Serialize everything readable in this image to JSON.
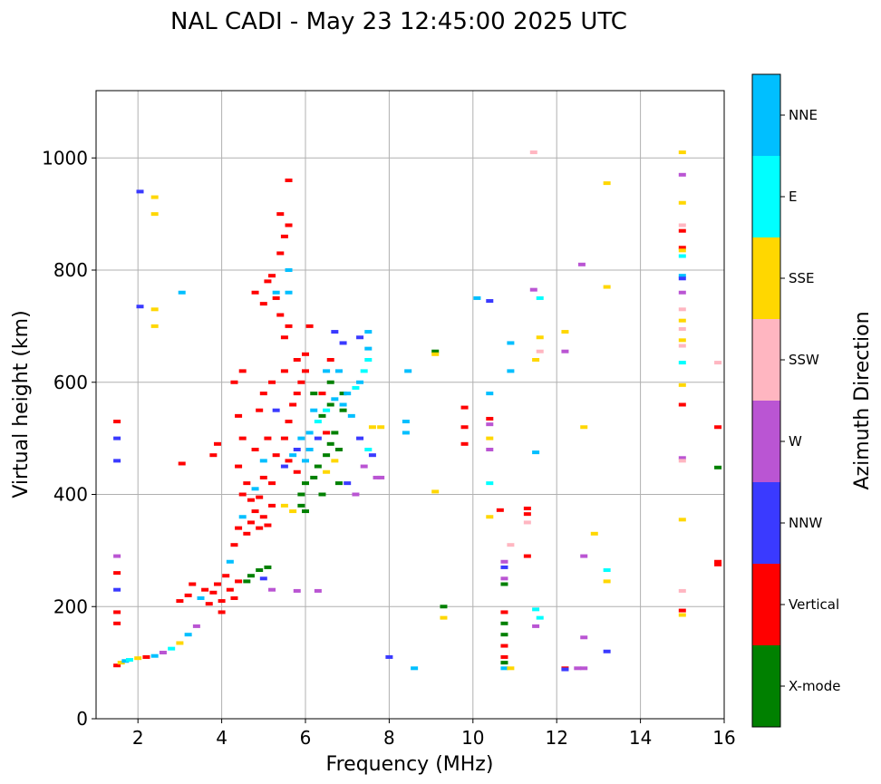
{
  "chart_data": {
    "type": "scatter",
    "title": "NAL CADI - May 23 12:45:00 2025 UTC",
    "xlabel": "Frequency (MHz)",
    "ylabel": "Virtual height (km)",
    "xlim": [
      1,
      16
    ],
    "ylim": [
      0,
      1120
    ],
    "xticks": [
      2,
      4,
      6,
      8,
      10,
      12,
      14,
      16
    ],
    "xtick_labels": [
      "2",
      "4",
      "6",
      "8",
      "10",
      "12",
      "14",
      "16"
    ],
    "yticks": [
      0,
      200,
      400,
      600,
      800,
      1000
    ],
    "ytick_labels": [
      "0",
      "200",
      "400",
      "600",
      "800",
      "1000"
    ],
    "grid": true,
    "colorbar": {
      "label": "Azimuth Direction",
      "categories": [
        {
          "name": "X-mode",
          "color": "#008000"
        },
        {
          "name": "Vertical",
          "color": "#ff0000"
        },
        {
          "name": "NNW",
          "color": "#3a3aff"
        },
        {
          "name": "W",
          "color": "#ba55d3"
        },
        {
          "name": "SSW",
          "color": "#ffb6c1"
        },
        {
          "name": "SSE",
          "color": "#ffd700"
        },
        {
          "name": "E",
          "color": "#00ffff"
        },
        {
          "name": "NNE",
          "color": "#00bfff"
        }
      ]
    },
    "points": [
      [
        1.5,
        95,
        "Vertical"
      ],
      [
        1.6,
        100,
        "SSE"
      ],
      [
        1.7,
        103,
        "NNE"
      ],
      [
        1.8,
        105,
        "E"
      ],
      [
        2.0,
        108,
        "SSE"
      ],
      [
        2.2,
        110,
        "Vertical"
      ],
      [
        2.4,
        112,
        "NNE"
      ],
      [
        2.6,
        118,
        "W"
      ],
      [
        2.8,
        125,
        "E"
      ],
      [
        3.0,
        135,
        "SSE"
      ],
      [
        3.2,
        150,
        "NNE"
      ],
      [
        3.4,
        165,
        "W"
      ],
      [
        1.5,
        170,
        "Vertical"
      ],
      [
        1.5,
        190,
        "Vertical"
      ],
      [
        1.5,
        230,
        "NNW"
      ],
      [
        1.5,
        260,
        "Vertical"
      ],
      [
        1.5,
        290,
        "W"
      ],
      [
        1.5,
        460,
        "NNW"
      ],
      [
        1.5,
        500,
        "NNW"
      ],
      [
        1.5,
        530,
        "Vertical"
      ],
      [
        2.05,
        940,
        "NNW"
      ],
      [
        2.05,
        735,
        "NNW"
      ],
      [
        2.4,
        900,
        "SSE"
      ],
      [
        2.4,
        930,
        "SSE"
      ],
      [
        2.4,
        700,
        "SSE"
      ],
      [
        2.4,
        730,
        "SSE"
      ],
      [
        3.05,
        760,
        "NNE"
      ],
      [
        3.05,
        455,
        "Vertical"
      ],
      [
        3.0,
        210,
        "Vertical"
      ],
      [
        3.2,
        220,
        "Vertical"
      ],
      [
        3.3,
        240,
        "Vertical"
      ],
      [
        3.5,
        215,
        "NNE"
      ],
      [
        3.6,
        230,
        "Vertical"
      ],
      [
        3.7,
        205,
        "Vertical"
      ],
      [
        3.8,
        225,
        "Vertical"
      ],
      [
        3.9,
        240,
        "Vertical"
      ],
      [
        4.0,
        210,
        "Vertical"
      ],
      [
        4.0,
        190,
        "Vertical"
      ],
      [
        4.1,
        255,
        "Vertical"
      ],
      [
        4.2,
        230,
        "Vertical"
      ],
      [
        4.3,
        215,
        "Vertical"
      ],
      [
        4.4,
        245,
        "Vertical"
      ],
      [
        4.2,
        280,
        "NNE"
      ],
      [
        4.3,
        310,
        "Vertical"
      ],
      [
        4.4,
        340,
        "Vertical"
      ],
      [
        4.5,
        360,
        "NNE"
      ],
      [
        4.6,
        330,
        "Vertical"
      ],
      [
        4.7,
        350,
        "Vertical"
      ],
      [
        4.8,
        370,
        "Vertical"
      ],
      [
        4.9,
        340,
        "Vertical"
      ],
      [
        5.0,
        360,
        "Vertical"
      ],
      [
        5.1,
        345,
        "Vertical"
      ],
      [
        5.2,
        380,
        "Vertical"
      ],
      [
        4.5,
        400,
        "Vertical"
      ],
      [
        4.6,
        420,
        "Vertical"
      ],
      [
        4.7,
        390,
        "Vertical"
      ],
      [
        4.8,
        410,
        "NNE"
      ],
      [
        4.9,
        395,
        "Vertical"
      ],
      [
        5.0,
        430,
        "Vertical"
      ],
      [
        5.2,
        420,
        "Vertical"
      ],
      [
        4.4,
        450,
        "Vertical"
      ],
      [
        4.5,
        500,
        "Vertical"
      ],
      [
        4.4,
        540,
        "Vertical"
      ],
      [
        4.3,
        600,
        "Vertical"
      ],
      [
        4.5,
        620,
        "Vertical"
      ],
      [
        3.9,
        490,
        "Vertical"
      ],
      [
        3.8,
        470,
        "Vertical"
      ],
      [
        4.7,
        255,
        "X-mode"
      ],
      [
        4.9,
        265,
        "X-mode"
      ],
      [
        5.1,
        270,
        "X-mode"
      ],
      [
        4.6,
        245,
        "X-mode"
      ],
      [
        5.0,
        250,
        "NNW"
      ],
      [
        5.2,
        230,
        "W"
      ],
      [
        5.8,
        228,
        "W"
      ],
      [
        6.3,
        228,
        "W"
      ],
      [
        5.5,
        380,
        "SSE"
      ],
      [
        5.7,
        370,
        "SSE"
      ],
      [
        5.9,
        400,
        "X-mode"
      ],
      [
        6.0,
        420,
        "X-mode"
      ],
      [
        6.2,
        430,
        "X-mode"
      ],
      [
        6.3,
        450,
        "X-mode"
      ],
      [
        6.5,
        470,
        "X-mode"
      ],
      [
        6.6,
        490,
        "X-mode"
      ],
      [
        6.8,
        480,
        "X-mode"
      ],
      [
        6.7,
        510,
        "X-mode"
      ],
      [
        6.4,
        540,
        "X-mode"
      ],
      [
        6.6,
        560,
        "X-mode"
      ],
      [
        6.9,
        550,
        "X-mode"
      ],
      [
        6.2,
        580,
        "X-mode"
      ],
      [
        6.6,
        600,
        "X-mode"
      ],
      [
        6.9,
        580,
        "X-mode"
      ],
      [
        5.9,
        380,
        "X-mode"
      ],
      [
        6.0,
        370,
        "X-mode"
      ],
      [
        6.4,
        400,
        "X-mode"
      ],
      [
        6.8,
        420,
        "X-mode"
      ],
      [
        6.5,
        440,
        "SSE"
      ],
      [
        6.7,
        460,
        "SSE"
      ],
      [
        5.5,
        450,
        "NNW"
      ],
      [
        5.7,
        470,
        "NNE"
      ],
      [
        5.9,
        500,
        "NNE"
      ],
      [
        6.1,
        510,
        "NNE"
      ],
      [
        6.3,
        530,
        "E"
      ],
      [
        6.5,
        550,
        "E"
      ],
      [
        6.7,
        570,
        "NNE"
      ],
      [
        6.9,
        560,
        "NNE"
      ],
      [
        7.0,
        580,
        "NNE"
      ],
      [
        7.2,
        590,
        "E"
      ],
      [
        7.3,
        600,
        "NNE"
      ],
      [
        7.4,
        620,
        "E"
      ],
      [
        7.5,
        640,
        "E"
      ],
      [
        7.1,
        540,
        "NNE"
      ],
      [
        7.3,
        500,
        "NNW"
      ],
      [
        7.5,
        480,
        "E"
      ],
      [
        7.6,
        470,
        "NNW"
      ],
      [
        7.4,
        450,
        "W"
      ],
      [
        7.7,
        430,
        "W"
      ],
      [
        7.0,
        420,
        "NNW"
      ],
      [
        7.2,
        400,
        "W"
      ],
      [
        7.6,
        520,
        "SSE"
      ],
      [
        7.5,
        660,
        "NNE"
      ],
      [
        7.5,
        690,
        "NNE"
      ],
      [
        7.3,
        680,
        "NNW"
      ],
      [
        6.9,
        670,
        "NNW"
      ],
      [
        6.7,
        690,
        "NNW"
      ],
      [
        6.1,
        700,
        "Vertical"
      ],
      [
        5.5,
        500,
        "Vertical"
      ],
      [
        5.6,
        530,
        "Vertical"
      ],
      [
        5.7,
        560,
        "Vertical"
      ],
      [
        5.8,
        580,
        "Vertical"
      ],
      [
        5.9,
        600,
        "Vertical"
      ],
      [
        6.0,
        620,
        "Vertical"
      ],
      [
        6.0,
        650,
        "Vertical"
      ],
      [
        5.8,
        640,
        "Vertical"
      ],
      [
        5.5,
        680,
        "Vertical"
      ],
      [
        5.4,
        720,
        "Vertical"
      ],
      [
        5.3,
        750,
        "Vertical"
      ],
      [
        5.2,
        790,
        "Vertical"
      ],
      [
        5.1,
        780,
        "Vertical"
      ],
      [
        5.0,
        740,
        "Vertical"
      ],
      [
        4.8,
        760,
        "Vertical"
      ],
      [
        5.6,
        700,
        "Vertical"
      ],
      [
        5.4,
        830,
        "Vertical"
      ],
      [
        5.5,
        860,
        "Vertical"
      ],
      [
        5.6,
        880,
        "Vertical"
      ],
      [
        5.4,
        900,
        "Vertical"
      ],
      [
        5.6,
        960,
        "Vertical"
      ],
      [
        5.6,
        800,
        "NNE"
      ],
      [
        5.6,
        760,
        "NNE"
      ],
      [
        5.3,
        760,
        "NNE"
      ],
      [
        5.5,
        620,
        "Vertical"
      ],
      [
        5.2,
        600,
        "Vertical"
      ],
      [
        5.0,
        580,
        "Vertical"
      ],
      [
        4.9,
        550,
        "Vertical"
      ],
      [
        5.3,
        550,
        "NNW"
      ],
      [
        5.1,
        500,
        "Vertical"
      ],
      [
        4.8,
        480,
        "Vertical"
      ],
      [
        5.0,
        460,
        "NNE"
      ],
      [
        5.3,
        470,
        "Vertical"
      ],
      [
        5.6,
        460,
        "Vertical"
      ],
      [
        5.8,
        440,
        "Vertical"
      ],
      [
        6.0,
        460,
        "NNE"
      ],
      [
        5.8,
        480,
        "NNW"
      ],
      [
        6.1,
        480,
        "NNE"
      ],
      [
        6.3,
        500,
        "NNW"
      ],
      [
        6.5,
        510,
        "Vertical"
      ],
      [
        6.2,
        550,
        "NNE"
      ],
      [
        6.4,
        580,
        "Vertical"
      ],
      [
        6.6,
        640,
        "Vertical"
      ],
      [
        6.5,
        620,
        "NNE"
      ],
      [
        6.8,
        620,
        "NNE"
      ],
      [
        7.8,
        520,
        "SSE"
      ],
      [
        7.8,
        430,
        "W"
      ],
      [
        8.0,
        110,
        "NNW"
      ],
      [
        8.45,
        620,
        "NNE"
      ],
      [
        8.4,
        530,
        "NNE"
      ],
      [
        8.4,
        510,
        "NNE"
      ],
      [
        8.6,
        90,
        "NNE"
      ],
      [
        9.1,
        655,
        "X-mode"
      ],
      [
        9.1,
        650,
        "SSE"
      ],
      [
        9.1,
        405,
        "SSE"
      ],
      [
        9.3,
        200,
        "X-mode"
      ],
      [
        9.3,
        180,
        "SSE"
      ],
      [
        9.8,
        555,
        "Vertical"
      ],
      [
        9.8,
        520,
        "Vertical"
      ],
      [
        9.8,
        490,
        "Vertical"
      ],
      [
        10.1,
        750,
        "NNE"
      ],
      [
        10.4,
        745,
        "NNW"
      ],
      [
        10.4,
        580,
        "NNE"
      ],
      [
        10.4,
        535,
        "Vertical"
      ],
      [
        10.4,
        525,
        "W"
      ],
      [
        10.4,
        500,
        "SSE"
      ],
      [
        10.4,
        480,
        "W"
      ],
      [
        10.4,
        420,
        "E"
      ],
      [
        10.4,
        360,
        "SSE"
      ],
      [
        10.65,
        372,
        "Vertical"
      ],
      [
        10.75,
        280,
        "W"
      ],
      [
        10.75,
        270,
        "NNW"
      ],
      [
        10.75,
        250,
        "W"
      ],
      [
        10.75,
        240,
        "X-mode"
      ],
      [
        10.75,
        190,
        "Vertical"
      ],
      [
        10.75,
        170,
        "X-mode"
      ],
      [
        10.75,
        150,
        "X-mode"
      ],
      [
        10.75,
        130,
        "Vertical"
      ],
      [
        10.75,
        110,
        "Vertical"
      ],
      [
        10.75,
        100,
        "X-mode"
      ],
      [
        10.75,
        90,
        "NNE"
      ],
      [
        10.9,
        90,
        "SSE"
      ],
      [
        10.9,
        310,
        "SSW"
      ],
      [
        10.9,
        620,
        "NNE"
      ],
      [
        10.9,
        670,
        "NNE"
      ],
      [
        11.3,
        365,
        "Vertical"
      ],
      [
        11.3,
        375,
        "Vertical"
      ],
      [
        11.3,
        350,
        "SSW"
      ],
      [
        11.3,
        290,
        "Vertical"
      ],
      [
        11.45,
        1010,
        "SSW"
      ],
      [
        11.45,
        765,
        "W"
      ],
      [
        11.5,
        640,
        "SSE"
      ],
      [
        11.5,
        475,
        "NNE"
      ],
      [
        11.5,
        195,
        "E"
      ],
      [
        11.5,
        165,
        "W"
      ],
      [
        11.6,
        750,
        "E"
      ],
      [
        11.6,
        680,
        "SSE"
      ],
      [
        11.6,
        655,
        "SSW"
      ],
      [
        11.6,
        180,
        "E"
      ],
      [
        12.2,
        690,
        "SSE"
      ],
      [
        12.2,
        655,
        "W"
      ],
      [
        12.2,
        90,
        "Vertical"
      ],
      [
        12.2,
        88,
        "NNW"
      ],
      [
        12.5,
        90,
        "W"
      ],
      [
        12.6,
        810,
        "W"
      ],
      [
        12.65,
        520,
        "SSE"
      ],
      [
        12.65,
        290,
        "W"
      ],
      [
        12.65,
        145,
        "W"
      ],
      [
        12.65,
        90,
        "W"
      ],
      [
        12.9,
        330,
        "SSE"
      ],
      [
        13.2,
        955,
        "SSE"
      ],
      [
        13.2,
        770,
        "SSE"
      ],
      [
        13.2,
        265,
        "E"
      ],
      [
        13.2,
        245,
        "SSE"
      ],
      [
        13.2,
        120,
        "NNW"
      ],
      [
        15.0,
        1010,
        "SSE"
      ],
      [
        15.0,
        970,
        "W"
      ],
      [
        15.0,
        920,
        "SSE"
      ],
      [
        15.0,
        880,
        "SSW"
      ],
      [
        15.0,
        870,
        "Vertical"
      ],
      [
        15.0,
        840,
        "Vertical"
      ],
      [
        15.0,
        835,
        "SSE"
      ],
      [
        15.0,
        825,
        "E"
      ],
      [
        15.0,
        790,
        "NNE"
      ],
      [
        15.0,
        785,
        "NNW"
      ],
      [
        15.0,
        760,
        "W"
      ],
      [
        15.0,
        730,
        "SSW"
      ],
      [
        15.0,
        710,
        "SSE"
      ],
      [
        15.0,
        695,
        "SSW"
      ],
      [
        15.0,
        675,
        "SSE"
      ],
      [
        15.0,
        665,
        "SSW"
      ],
      [
        15.0,
        635,
        "E"
      ],
      [
        15.0,
        595,
        "SSE"
      ],
      [
        15.0,
        560,
        "Vertical"
      ],
      [
        15.0,
        465,
        "W"
      ],
      [
        15.0,
        460,
        "SSW"
      ],
      [
        15.0,
        355,
        "SSE"
      ],
      [
        15.0,
        228,
        "SSW"
      ],
      [
        15.0,
        193,
        "Vertical"
      ],
      [
        15.0,
        185,
        "SSE"
      ],
      [
        15.85,
        635,
        "SSW"
      ],
      [
        15.85,
        520,
        "Vertical"
      ],
      [
        15.85,
        448,
        "X-mode"
      ],
      [
        15.85,
        280,
        "Vertical"
      ],
      [
        15.85,
        275,
        "Vertical"
      ]
    ]
  }
}
